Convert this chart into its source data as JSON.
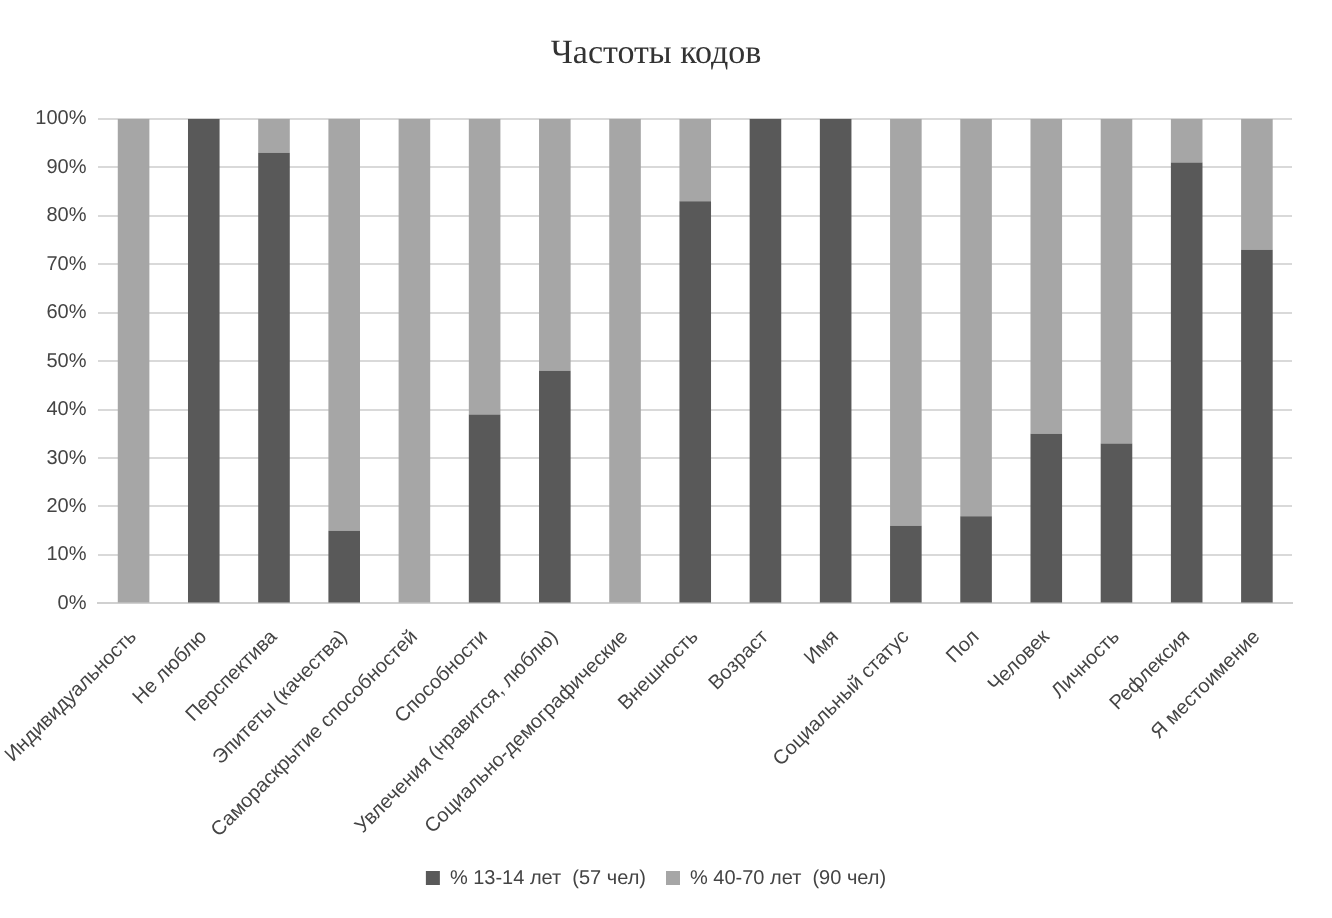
{
  "chart_data": {
    "type": "bar",
    "title": "Частоты кодов",
    "stacked": true,
    "categories": [
      "Индивидуальность",
      "Не люблю",
      "Перспектива",
      "Эпитеты (качества)",
      "Самораскрытие способностей",
      "Способности",
      "Увлечения (нравится, люблю)",
      "Социально-демографические",
      "Внешность",
      "Возраст",
      "Имя",
      "Социальный статус",
      "Пол",
      "Человек",
      "Личность",
      "Рефлексия",
      "Я местоимение"
    ],
    "series": [
      {
        "name": "% 13-14 лет  (57 чел)",
        "color": "#595959",
        "values": [
          0,
          100,
          93,
          15,
          0,
          39,
          48,
          0,
          83,
          100,
          100,
          16,
          18,
          35,
          33,
          91,
          73
        ]
      },
      {
        "name": "% 40-70 лет  (90 чел)",
        "color": "#a6a6a6",
        "values": [
          100,
          0,
          7,
          85,
          100,
          61,
          52,
          100,
          17,
          0,
          0,
          84,
          82,
          65,
          67,
          9,
          27
        ]
      }
    ],
    "ylim": [
      0,
      100
    ],
    "yticks": [
      {
        "value": 0,
        "label": "0%"
      },
      {
        "value": 10,
        "label": "10%"
      },
      {
        "value": 20,
        "label": "20%"
      },
      {
        "value": 30,
        "label": "30%"
      },
      {
        "value": 40,
        "label": "40%"
      },
      {
        "value": 50,
        "label": "50%"
      },
      {
        "value": 60,
        "label": "60%"
      },
      {
        "value": 70,
        "label": "70%"
      },
      {
        "value": 80,
        "label": "80%"
      },
      {
        "value": 90,
        "label": "90%"
      },
      {
        "value": 100,
        "label": "100%"
      }
    ],
    "grid": "y",
    "legend": "bottom"
  }
}
